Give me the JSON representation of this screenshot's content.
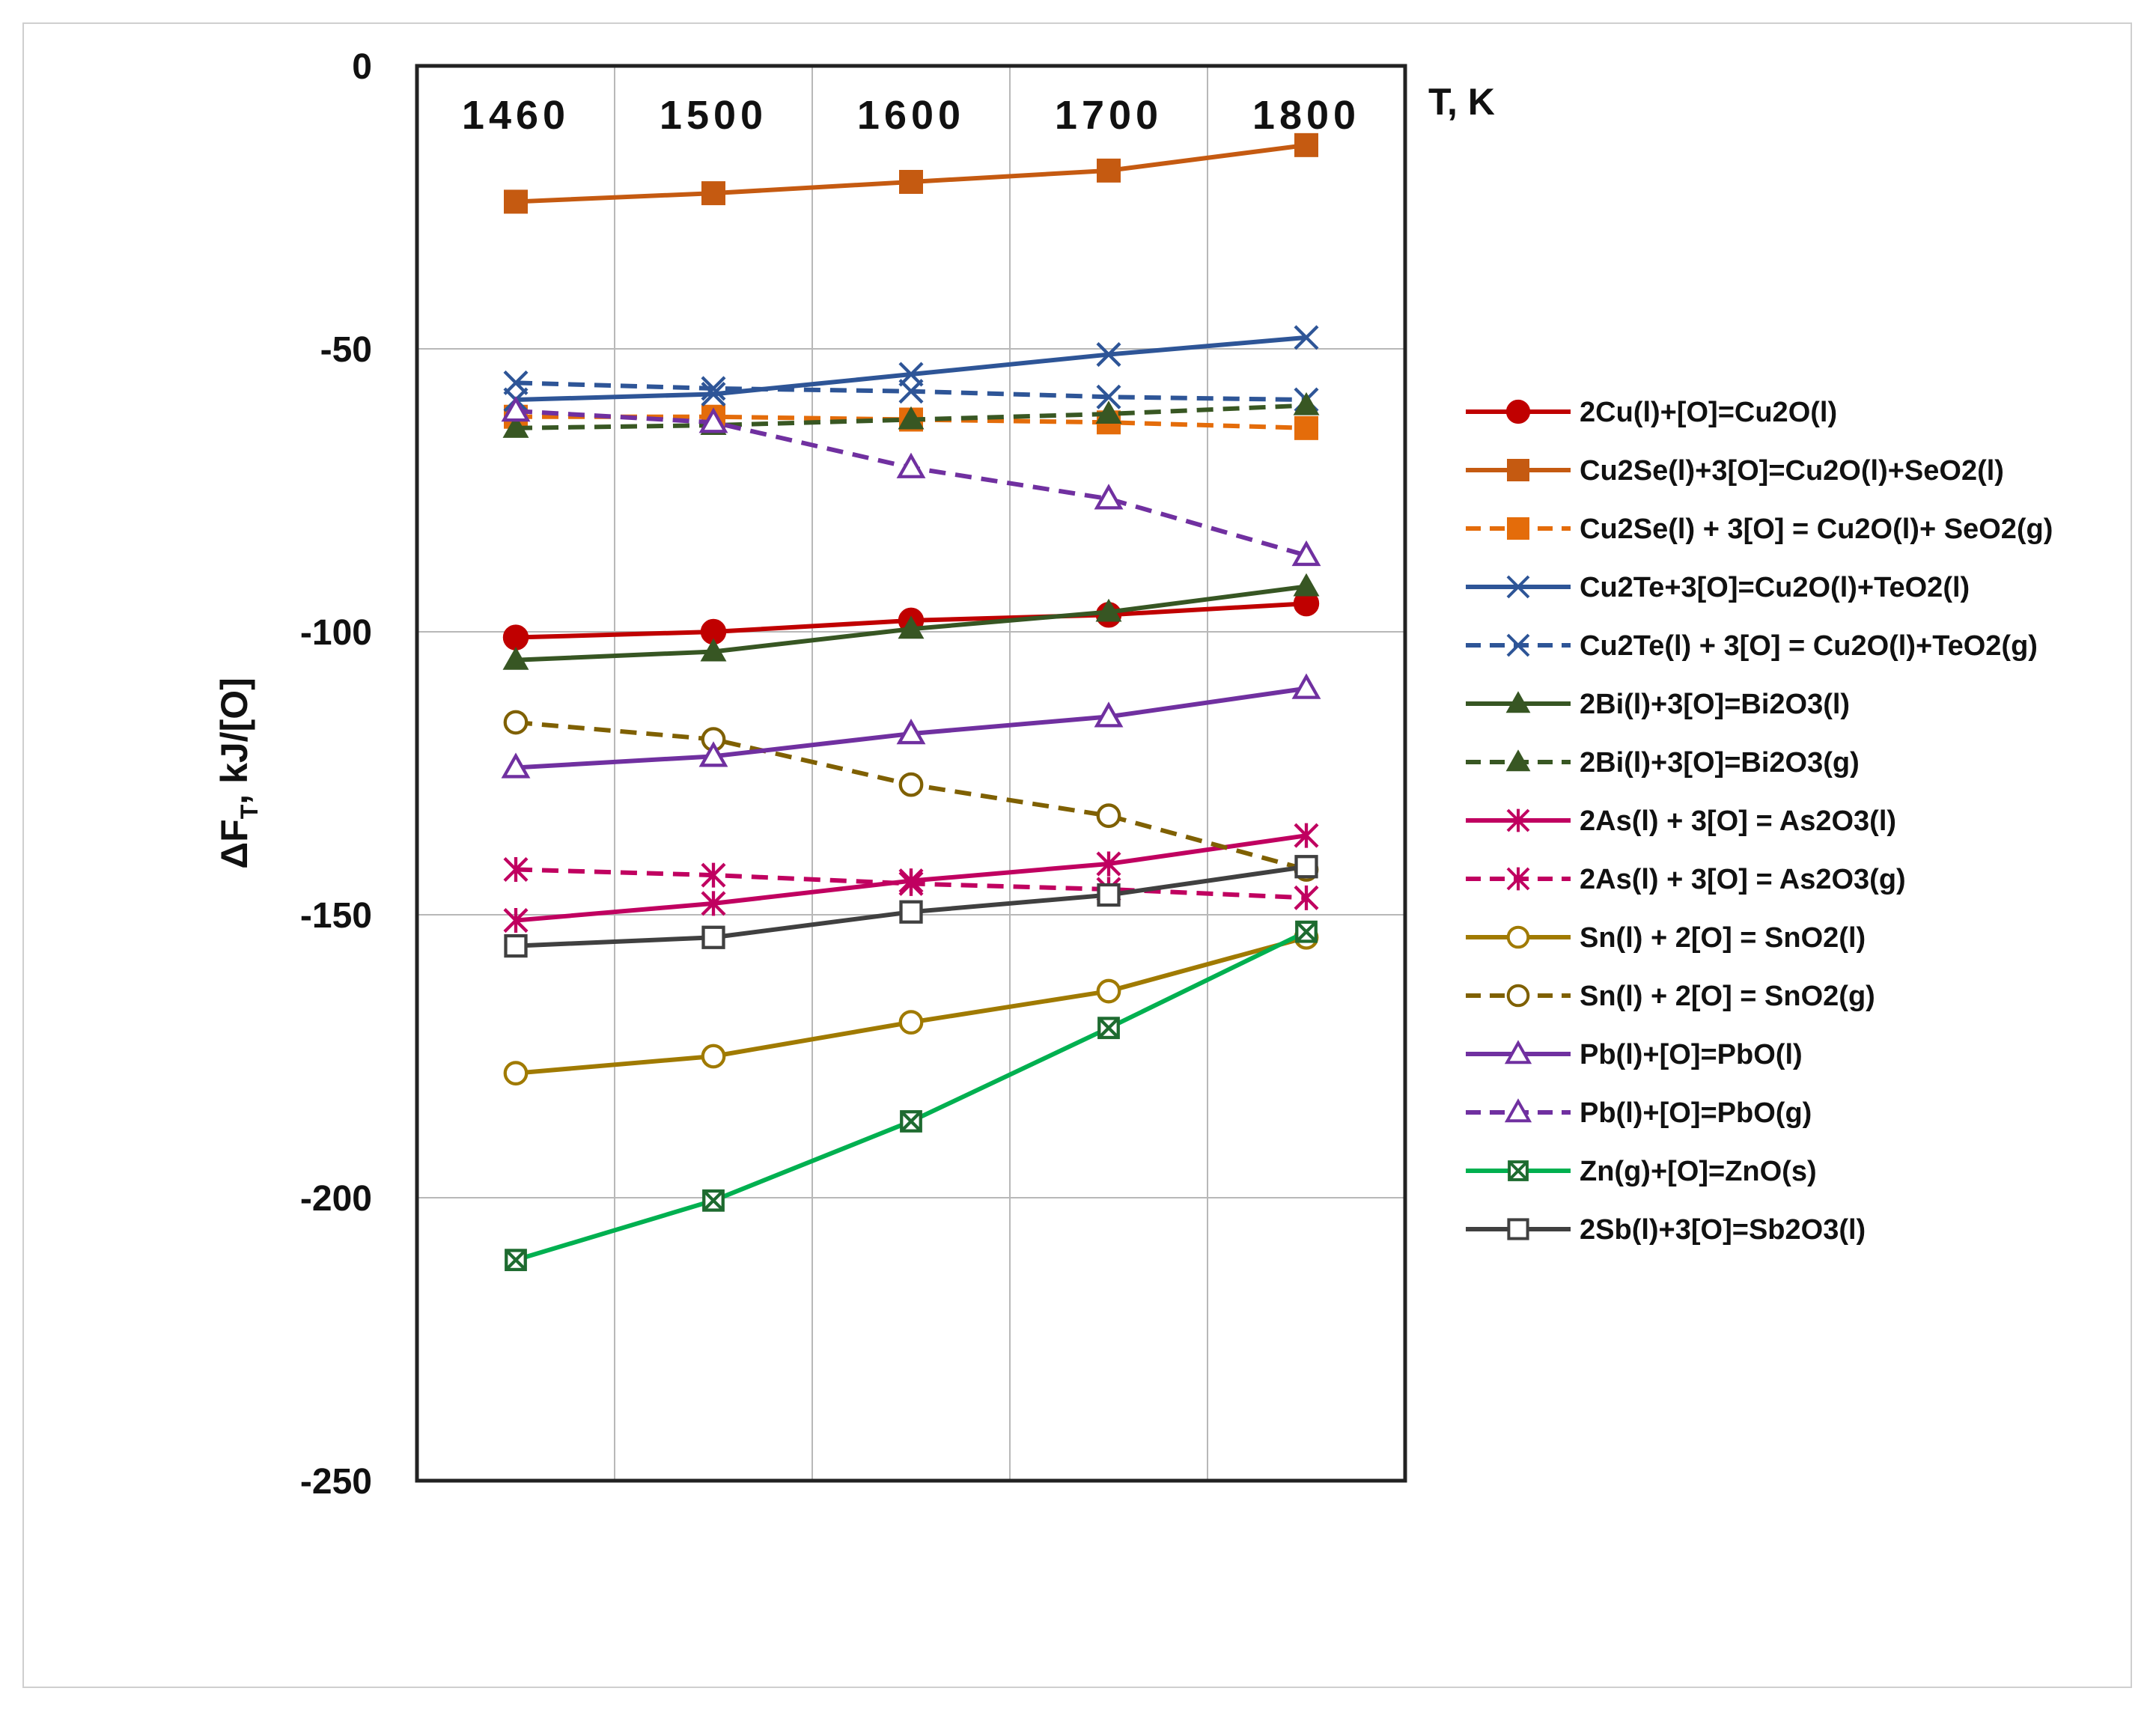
{
  "chart_data": {
    "type": "line",
    "title": "",
    "xlabel": "T, K",
    "ylabel": "ΔF",
    "ylabel_sub": "T",
    "ylabel_unit": ", kJ/[O]",
    "ylim": [
      -250,
      0
    ],
    "yticks": [
      0,
      -50,
      -100,
      -150,
      -200,
      -250
    ],
    "x": [
      1460,
      1500,
      1600,
      1700,
      1800
    ],
    "x_tick_labels": [
      "1460",
      "1500",
      "1600",
      "1700",
      "1800"
    ],
    "x_axis_position": "top",
    "grid": true,
    "legend_position": "right",
    "series": [
      {
        "name": "2Cu(l)+[O]=Cu2O(l)",
        "color": "#c00000",
        "dash": "solid",
        "marker": "circle-filled",
        "values": [
          -101,
          -100,
          -98,
          -97,
          -95
        ]
      },
      {
        "name": "Cu2Se(l)+3[O]=Cu2O(l)+SeO2(l)",
        "color": "#c55a11",
        "dash": "solid",
        "marker": "square-filled",
        "values": [
          -24,
          -22.5,
          -20.5,
          -18.5,
          -14
        ]
      },
      {
        "name": "Cu2Se(l) + 3[O] = Cu2O(l)+ SeO2(g)",
        "color": "#e46c0a",
        "dash": "dashed",
        "marker": "square-filled",
        "values": [
          -62,
          -62,
          -62.5,
          -63,
          -64
        ]
      },
      {
        "name": "Cu2Te+3[O]=Cu2O(l)+TeO2(l)",
        "color": "#2e5597",
        "dash": "solid",
        "marker": "x",
        "values": [
          -59,
          -58,
          -54.5,
          -51,
          -48
        ]
      },
      {
        "name": "Cu2Te(l) + 3[O] = Cu2O(l)+TeO2(g)",
        "color": "#2e5597",
        "dash": "dashed",
        "marker": "x",
        "values": [
          -56,
          -57,
          -57.5,
          -58.5,
          -59
        ]
      },
      {
        "name": "2Bi(l)+3[O]=Bi2O3(l)",
        "color": "#375623",
        "dash": "solid",
        "marker": "triangle-filled",
        "values": [
          -105,
          -103.5,
          -99.5,
          -96.5,
          -92
        ]
      },
      {
        "name": "2Bi(l)+3[O]=Bi2O3(g)",
        "color": "#385723",
        "dash": "dashed",
        "marker": "triangle-filled",
        "values": [
          -64,
          -63.5,
          -62.5,
          -61.5,
          -60
        ]
      },
      {
        "name": "2As(l) + 3[O] = As2O3(l)",
        "color": "#c00060",
        "dash": "solid",
        "marker": "asterisk",
        "values": [
          -151,
          -148,
          -144,
          -141,
          -136
        ]
      },
      {
        "name": "2As(l) + 3[O] = As2O3(g)",
        "color": "#c00060",
        "dash": "dashed",
        "marker": "asterisk",
        "values": [
          -142,
          -143,
          -144.5,
          -145.5,
          -147
        ]
      },
      {
        "name": "Sn(l) + 2[O] = SnO2(l)",
        "color": "#a07a00",
        "dash": "solid",
        "marker": "circle-open",
        "values": [
          -178,
          -175,
          -169,
          -163.5,
          -154
        ]
      },
      {
        "name": "Sn(l) + 2[O] = SnO2(g)",
        "color": "#7f6000",
        "dash": "dashed",
        "marker": "circle-open",
        "values": [
          -116,
          -119,
          -127,
          -132.5,
          -142
        ]
      },
      {
        "name": "Pb(l)+[O]=PbO(l)",
        "color": "#7030a0",
        "dash": "solid",
        "marker": "triangle-open",
        "values": [
          -124,
          -122,
          -118,
          -115,
          -110
        ]
      },
      {
        "name": "Pb(l)+[O]=PbO(g)",
        "color": "#7030a0",
        "dash": "dashed",
        "marker": "triangle-open",
        "values": [
          -61,
          -63,
          -71,
          -76.5,
          -86.5
        ]
      },
      {
        "name": "Zn(g)+[O]=ZnO(s)",
        "color": "#00b050",
        "dash": "solid",
        "marker": "square-x",
        "values": [
          -211,
          -200.5,
          -186.5,
          -170,
          -153
        ]
      },
      {
        "name": "2Sb(l)+3[O]=Sb2O3(l)",
        "color": "#404040",
        "dash": "solid",
        "marker": "square-open",
        "values": [
          -155.5,
          -154,
          -149.5,
          -146.5,
          -141.5
        ]
      }
    ]
  }
}
